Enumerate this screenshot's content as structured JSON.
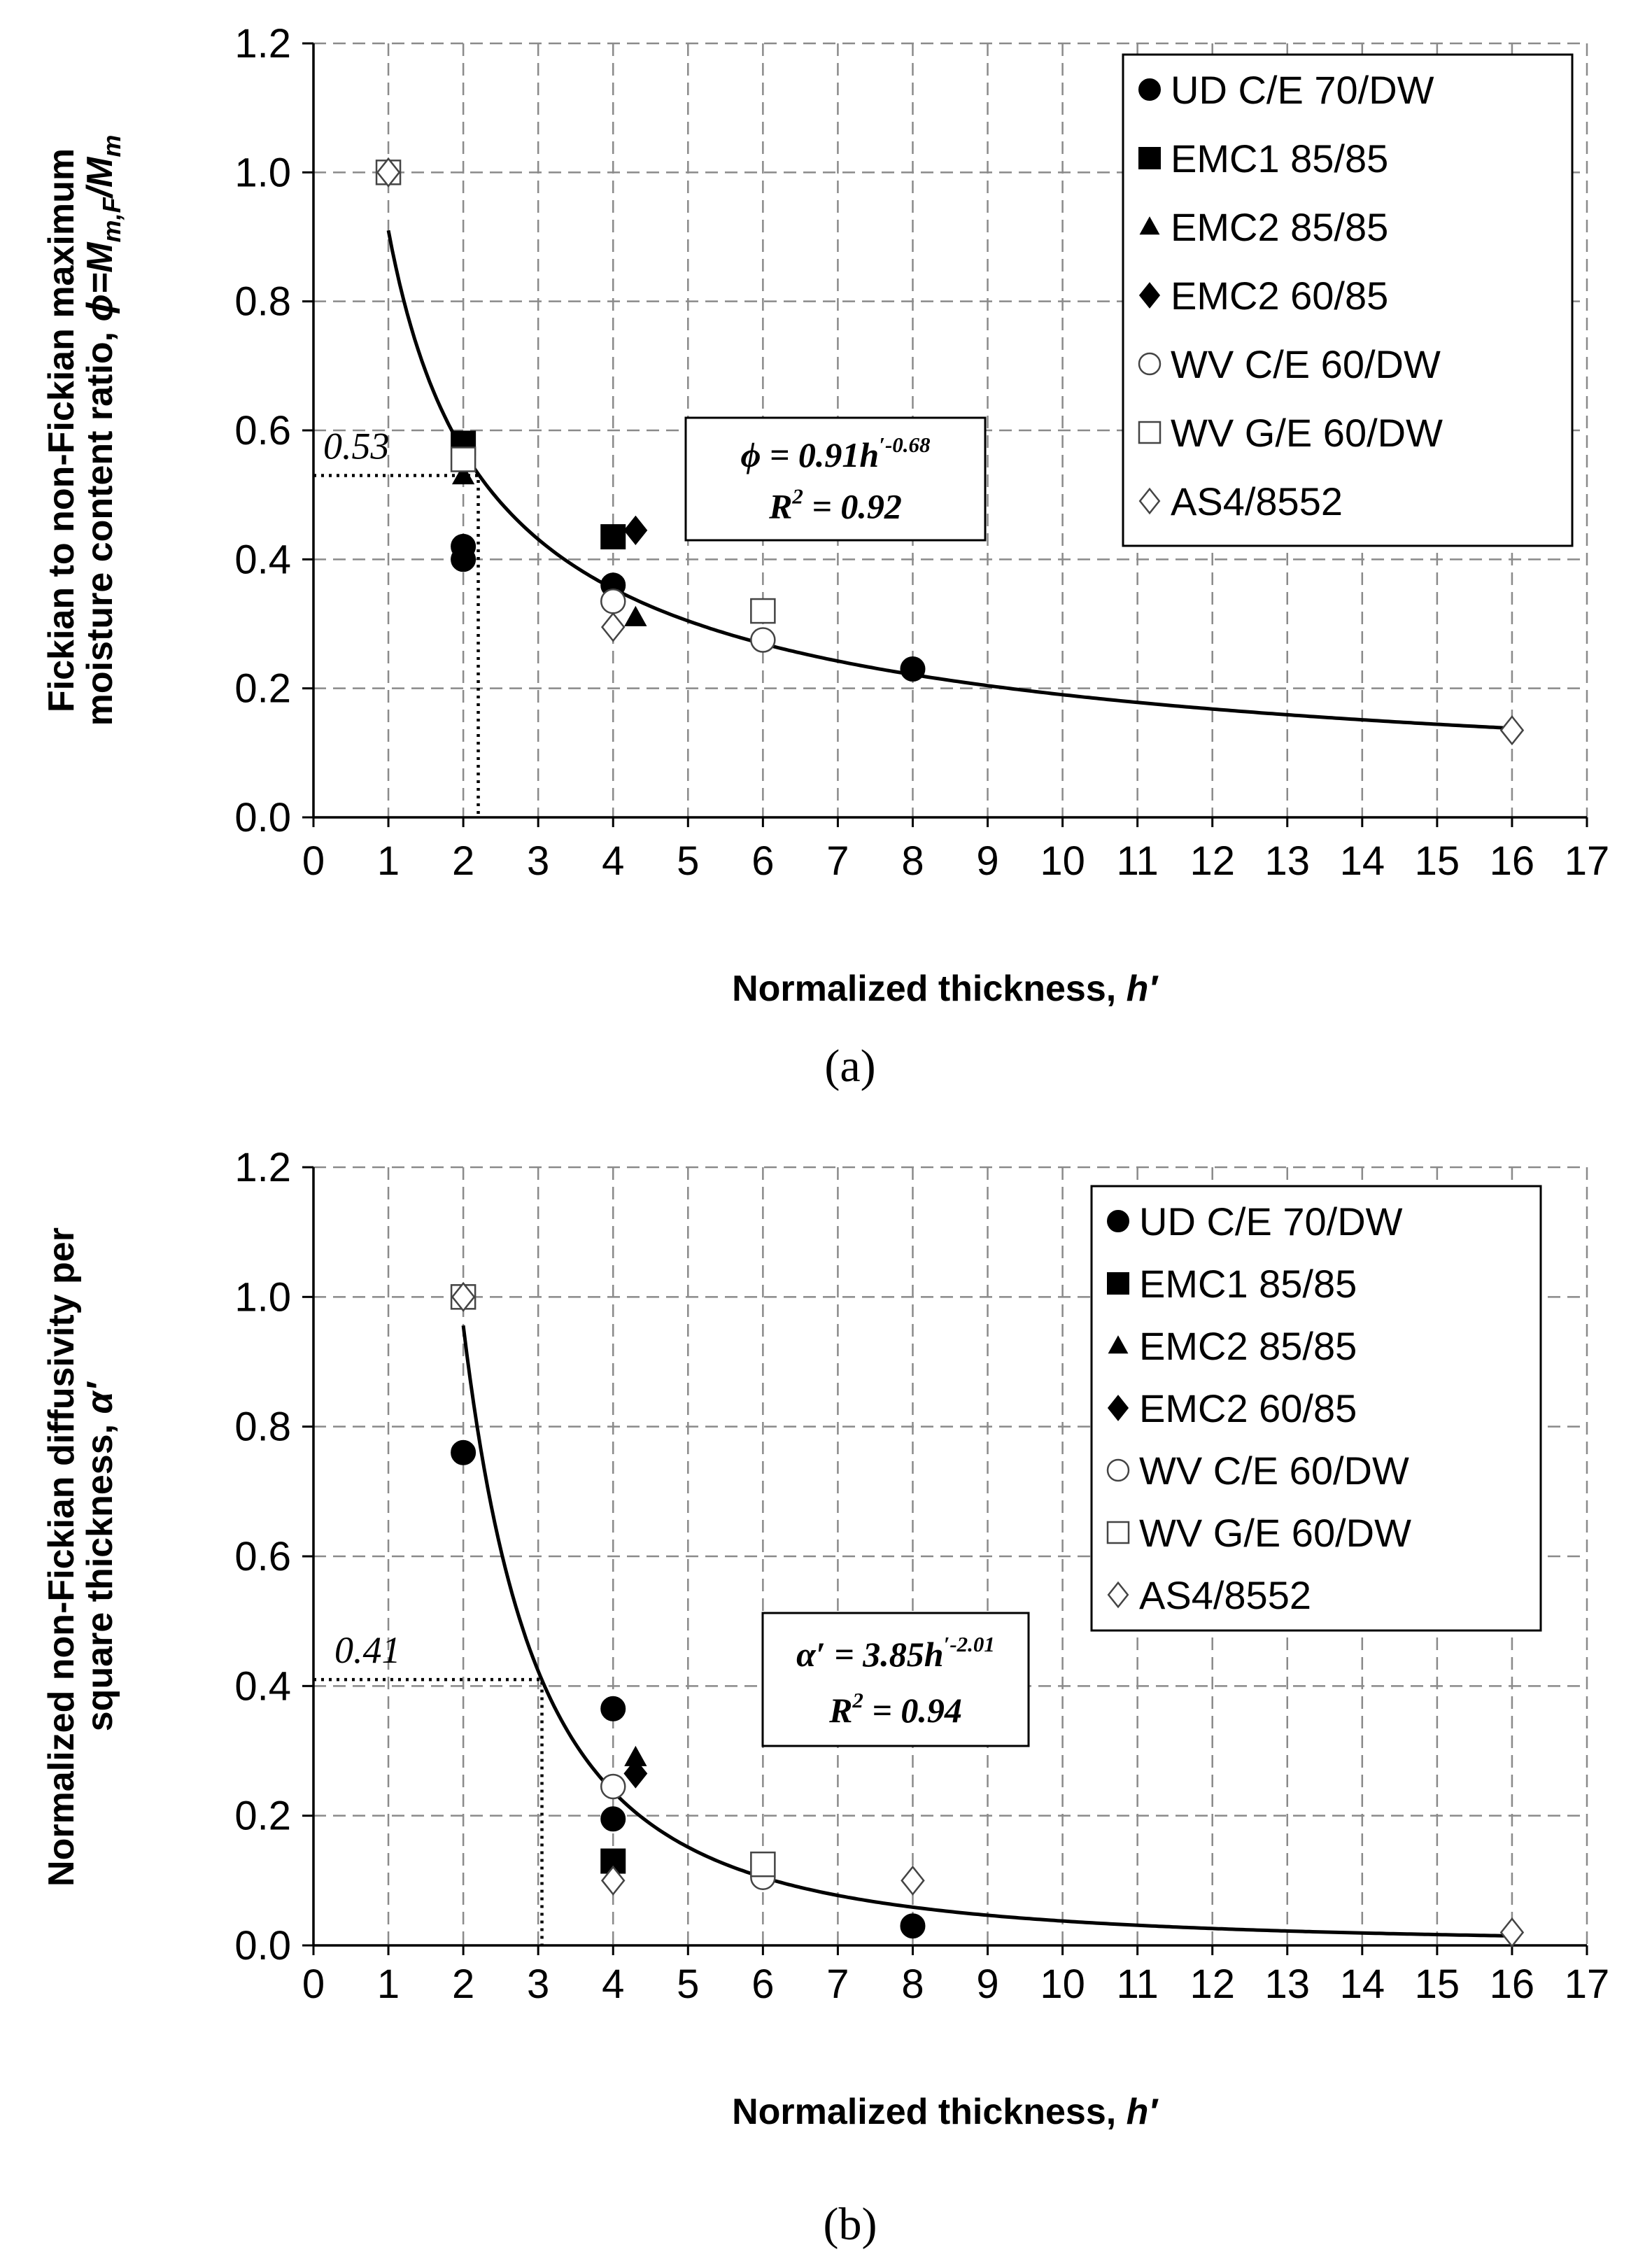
{
  "chart_data": [
    {
      "type": "scatter",
      "panel_label": "(a)",
      "xlabel": "Normalized thickness, ",
      "xlabel_var": "h′",
      "ylabel_line1": "Fickian to non-Fickian maximum",
      "ylabel_line2": "moisture content ratio, ",
      "ylabel_var": "ϕ=M",
      "ylabel_sub1": "m,F",
      "ylabel_mid": "/M",
      "ylabel_sub2": "m",
      "xlim": [
        0,
        17
      ],
      "ylim": [
        0,
        1.2
      ],
      "xticks": [
        "0",
        "1",
        "2",
        "3",
        "4",
        "5",
        "6",
        "7",
        "8",
        "9",
        "10",
        "11",
        "12",
        "13",
        "14",
        "15",
        "16",
        "17"
      ],
      "yticks": [
        "0.0",
        "0.2",
        "0.4",
        "0.6",
        "0.8",
        "1.0",
        "1.2"
      ],
      "grid": true,
      "legend_position": "top-right",
      "series": [
        {
          "name": "UD C/E 70/DW",
          "marker": "circle-filled",
          "points": [
            [
              2,
              0.42
            ],
            [
              2,
              0.4
            ],
            [
              4,
              0.36
            ],
            [
              8,
              0.23
            ]
          ]
        },
        {
          "name": "EMC1 85/85",
          "marker": "square-filled",
          "points": [
            [
              2,
              0.58
            ],
            [
              4,
              0.435
            ]
          ]
        },
        {
          "name": "EMC2 85/85",
          "marker": "triangle-filled",
          "points": [
            [
              2,
              0.53
            ],
            [
              4.3,
              0.31
            ]
          ]
        },
        {
          "name": "EMC2 60/85",
          "marker": "diamond-filled",
          "points": [
            [
              2,
              0.55
            ],
            [
              4.3,
              0.445
            ]
          ]
        },
        {
          "name": "WV C/E 60/DW",
          "marker": "circle-open",
          "points": [
            [
              4,
              0.335
            ],
            [
              6,
              0.275
            ]
          ]
        },
        {
          "name": "WV G/E 60/DW",
          "marker": "square-open",
          "points": [
            [
              1,
              1.0
            ],
            [
              2,
              0.555
            ],
            [
              6,
              0.32
            ]
          ]
        },
        {
          "name": "AS4/8552",
          "marker": "diamond-open",
          "points": [
            [
              1,
              1.0
            ],
            [
              4,
              0.295
            ],
            [
              16,
              0.135
            ]
          ]
        }
      ],
      "fit": {
        "coef": 0.91,
        "exp": -0.68,
        "x_range": [
          1,
          16
        ]
      },
      "fit_eq_lhs": "ϕ = 0.91h",
      "fit_eq_sup": "′-0.68",
      "r2_prefix": "R",
      "r2_sup": "2",
      "r2_value": " = 0.92",
      "guide": {
        "x": 2.2,
        "y": 0.53,
        "label": "0.53"
      }
    },
    {
      "type": "scatter",
      "panel_label": "(b)",
      "xlabel": "Normalized thickness, ",
      "xlabel_var": "h′",
      "ylabel_line1": "Normalized non-Fickian diffusivity per",
      "ylabel_line2": "square thickness, ",
      "ylabel_var": "α′",
      "xlim": [
        0,
        17
      ],
      "ylim": [
        0,
        1.2
      ],
      "xticks": [
        "0",
        "1",
        "2",
        "3",
        "4",
        "5",
        "6",
        "7",
        "8",
        "9",
        "10",
        "11",
        "12",
        "13",
        "14",
        "15",
        "16",
        "17"
      ],
      "yticks": [
        "0.0",
        "0.2",
        "0.4",
        "0.6",
        "0.8",
        "1.0",
        "1.2"
      ],
      "grid": true,
      "legend_position": "top-right",
      "series": [
        {
          "name": "UD C/E 70/DW",
          "marker": "circle-filled",
          "points": [
            [
              2,
              0.76
            ],
            [
              4,
              0.365
            ],
            [
              4,
              0.195
            ],
            [
              8,
              0.03
            ]
          ]
        },
        {
          "name": "EMC1 85/85",
          "marker": "square-filled",
          "points": [
            [
              4,
              0.13
            ]
          ]
        },
        {
          "name": "EMC2 85/85",
          "marker": "triangle-filled",
          "points": [
            [
              4.3,
              0.29
            ]
          ]
        },
        {
          "name": "EMC2 60/85",
          "marker": "diamond-filled",
          "points": [
            [
              4.3,
              0.265
            ]
          ]
        },
        {
          "name": "WV C/E 60/DW",
          "marker": "circle-open",
          "points": [
            [
              4,
              0.245
            ],
            [
              6,
              0.105
            ]
          ]
        },
        {
          "name": "WV G/E 60/DW",
          "marker": "square-open",
          "points": [
            [
              2,
              1.0
            ],
            [
              6,
              0.125
            ]
          ]
        },
        {
          "name": "AS4/8552",
          "marker": "diamond-open",
          "points": [
            [
              2,
              1.0
            ],
            [
              4,
              0.1
            ],
            [
              8,
              0.1
            ],
            [
              16,
              0.02
            ]
          ]
        }
      ],
      "fit": {
        "coef": 3.85,
        "exp": -2.01,
        "x_range": [
          2,
          16
        ]
      },
      "fit_eq_lhs": "α′ = 3.85h",
      "fit_eq_sup": "′-2.01",
      "r2_prefix": "R",
      "r2_sup": "2",
      "r2_value": " = 0.94",
      "guide": {
        "x": 3.05,
        "y": 0.41,
        "label": "0.41"
      }
    }
  ]
}
